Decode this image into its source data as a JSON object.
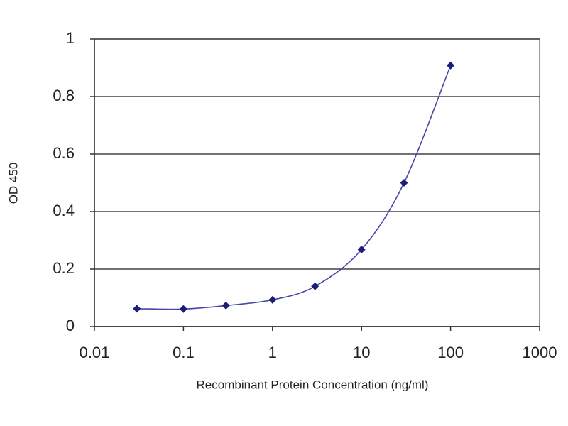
{
  "chart_data": {
    "type": "line",
    "x_label": "Recombinant Protein Concentration (ng/ml)",
    "y_label": "OD 450",
    "x": [
      0.03,
      0.1,
      0.3,
      1,
      3,
      10,
      30,
      100
    ],
    "values": [
      0.062,
      0.061,
      0.073,
      0.093,
      0.14,
      0.268,
      0.5,
      0.908
    ],
    "color": "#1c1c7a",
    "xlim": [
      0.01,
      1000
    ],
    "xticks": [
      0.01,
      0.1,
      1,
      10,
      100,
      1000
    ],
    "xscale": "log",
    "ylim": [
      0,
      1
    ],
    "yticks": [
      0,
      0.2,
      0.4,
      0.6,
      0.8,
      1
    ],
    "grid": true
  }
}
